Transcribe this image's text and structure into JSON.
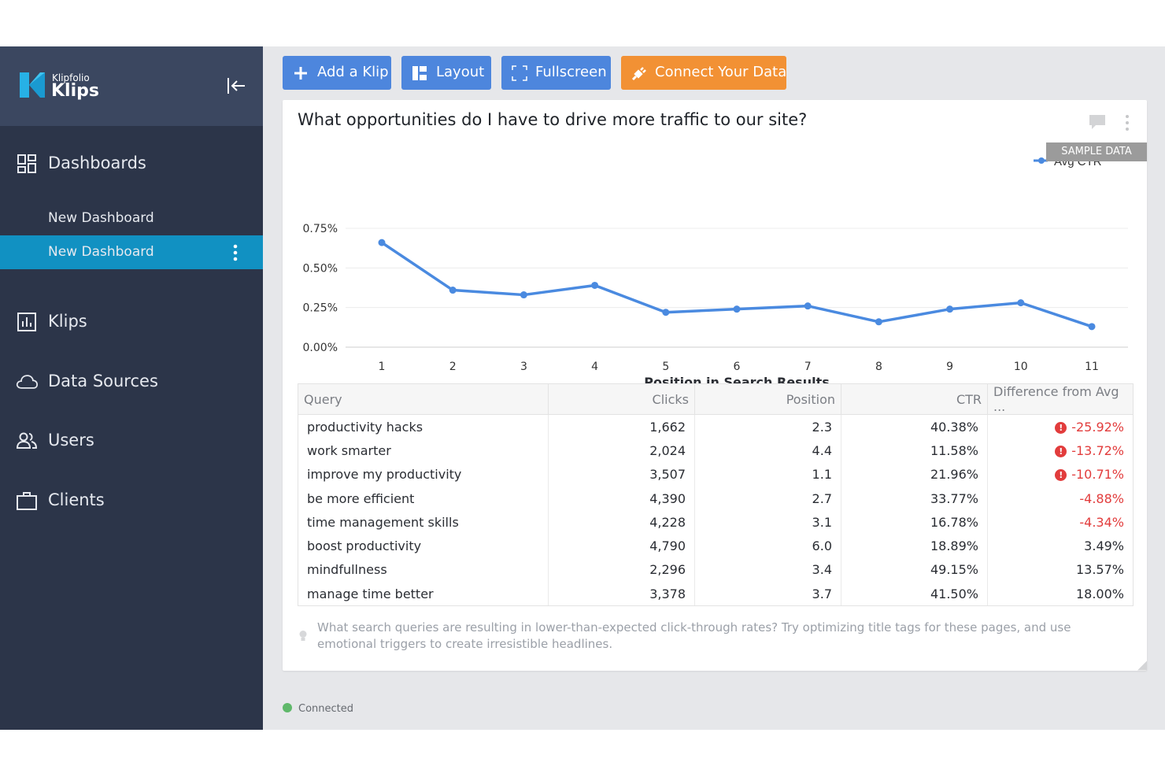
{
  "brand": {
    "company": "Klipfolio",
    "product": "Klips"
  },
  "sidebar": {
    "dashboards_label": "Dashboards",
    "dashboards": [
      {
        "label": "New Dashboard",
        "active": false
      },
      {
        "label": "New Dashboard",
        "active": true
      }
    ],
    "klips_label": "Klips",
    "data_sources_label": "Data Sources",
    "users_label": "Users",
    "clients_label": "Clients"
  },
  "toolbar": {
    "add_klip": "Add a Klip",
    "layout": "Layout",
    "fullscreen": "Fullscreen",
    "connect_data": "Connect Your Data"
  },
  "klip": {
    "title": "What opportunities do I have to drive more traffic to our site?",
    "badge": "SAMPLE DATA",
    "note": "What search queries are resulting in lower-than-expected click-through rates? Try optimizing title tags for these pages, and use emotional triggers to create irresistible headlines."
  },
  "chart_data": {
    "type": "line",
    "x": [
      1,
      2,
      3,
      4,
      5,
      6,
      7,
      8,
      9,
      10,
      11
    ],
    "series": [
      {
        "name": "Avg CTR",
        "values": [
          0.66,
          0.36,
          0.33,
          0.39,
          0.22,
          0.24,
          0.26,
          0.16,
          0.24,
          0.28,
          0.13
        ]
      }
    ],
    "y_ticks": [
      "0.00%",
      "0.25%",
      "0.50%",
      "0.75%"
    ],
    "ylim": [
      0,
      0.75
    ],
    "xlabel": "Position in Search Results",
    "ylabel": "",
    "legend": "top-right",
    "grid": true,
    "color": "#4a8ae0"
  },
  "table": {
    "headers": [
      "Query",
      "Clicks",
      "Position",
      "CTR",
      "Difference from Avg ..."
    ],
    "rows": [
      [
        "productivity hacks",
        "1,662",
        "2.3",
        "40.38%",
        "-25.92%"
      ],
      [
        "work smarter",
        "2,024",
        "4.4",
        "11.58%",
        "-13.72%"
      ],
      [
        "improve my productivity",
        "3,507",
        "1.1",
        "21.96%",
        "-10.71%"
      ],
      [
        "be more efficient",
        "4,390",
        "2.7",
        "33.77%",
        "-4.88%"
      ],
      [
        "time management skills",
        "4,228",
        "3.1",
        "16.78%",
        "-4.34%"
      ],
      [
        "boost productivity",
        "4,790",
        "6.0",
        "18.89%",
        "3.49%"
      ],
      [
        "mindfullness",
        "2,296",
        "3.4",
        "49.15%",
        "13.57%"
      ],
      [
        "manage time better",
        "3,378",
        "3.7",
        "41.50%",
        "18.00%"
      ]
    ],
    "warn_rows": [
      0,
      1,
      2
    ],
    "negative_color": "#e23c3c"
  },
  "status": {
    "text": "Connected",
    "color": "#5fb86a"
  },
  "colors": {
    "sidebar": "#2c3549",
    "active": "#1191c2",
    "button_blue": "#4d86dd",
    "button_orange": "#f29134"
  }
}
